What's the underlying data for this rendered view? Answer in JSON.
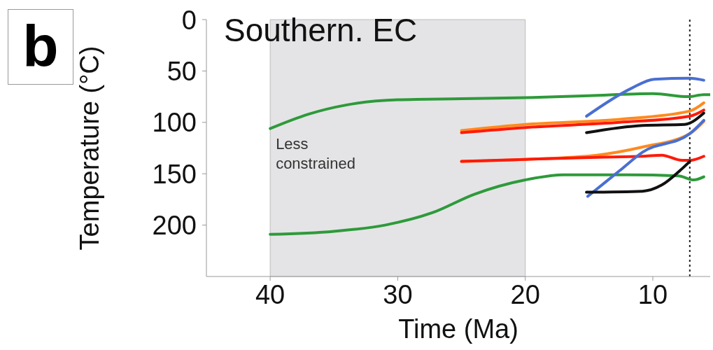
{
  "chart_data": {
    "type": "line",
    "title": "Southern. EC",
    "xlabel": "Time (Ma)",
    "ylabel": "Temperature (°C)",
    "annotations": [
      "b"
    ],
    "xlim": [
      45,
      5.5
    ],
    "xticks": [
      40,
      30,
      20,
      10
    ],
    "ylim": [
      250,
      0
    ],
    "yticks": [
      0,
      50,
      100,
      150,
      200
    ],
    "grid": false,
    "legend": false,
    "marker": "none",
    "line_style": "solid",
    "bands": [
      {
        "axis": "x",
        "from": 40,
        "to": 20,
        "label": "Less constrained",
        "color": "#e4e4e6"
      }
    ],
    "ref_lines": [
      {
        "axis": "x",
        "value": 7.1,
        "color": "#222222",
        "line_style": "dotted"
      }
    ],
    "series": [
      {
        "color": "#2e9a3a",
        "x": [
          40,
          37,
          34,
          30,
          25,
          20,
          15,
          10,
          7.2,
          6,
          5.5
        ],
        "values": [
          106,
          92,
          83,
          78,
          77,
          76,
          74,
          72,
          75,
          73,
          73
        ]
      },
      {
        "color": "#2e9a3a",
        "x": [
          40,
          35,
          31,
          27.3,
          24,
          20,
          17,
          12,
          8,
          6.8,
          6
        ],
        "values": [
          209,
          206,
          200,
          188,
          170,
          156,
          151,
          151,
          152,
          156,
          153
        ]
      },
      {
        "color": "#ff8a1e",
        "x": [
          25,
          20,
          12.6,
          7.1,
          6
        ],
        "values": [
          108,
          102,
          97,
          89,
          81
        ]
      },
      {
        "color": "#ff1a0a",
        "x": [
          25,
          20,
          12.6,
          7.1,
          6
        ],
        "values": [
          110,
          105,
          100,
          94,
          88
        ]
      },
      {
        "color": "#ff8a1e",
        "x": [
          25,
          20,
          14.4,
          10.8,
          7.1,
          6
        ],
        "values": [
          138,
          136,
          132,
          124,
          111,
          99
        ]
      },
      {
        "color": "#ff1a0a",
        "x": [
          25,
          20,
          14.4,
          10.8,
          9.3,
          7.7,
          7.1,
          6
        ],
        "values": [
          138,
          136,
          134,
          133,
          132,
          137,
          137,
          133
        ]
      },
      {
        "color": "#4a6fd1",
        "x": [
          15.2,
          11.7,
          9.9,
          7.1,
          6
        ],
        "values": [
          94,
          67,
          58,
          57,
          59
        ]
      },
      {
        "color": "#111111",
        "x": [
          15.2,
          10.8,
          7.5,
          6
        ],
        "values": [
          110,
          103,
          102,
          91
        ]
      },
      {
        "color": "#4a6fd1",
        "x": [
          15.1,
          12.6,
          10.8,
          7.1,
          6
        ],
        "values": [
          172,
          147,
          129,
          111,
          98
        ]
      },
      {
        "color": "#111111",
        "x": [
          15.2,
          10.8,
          9.3,
          7.7,
          7.1
        ],
        "values": [
          168,
          167,
          161,
          145,
          138
        ]
      }
    ]
  }
}
